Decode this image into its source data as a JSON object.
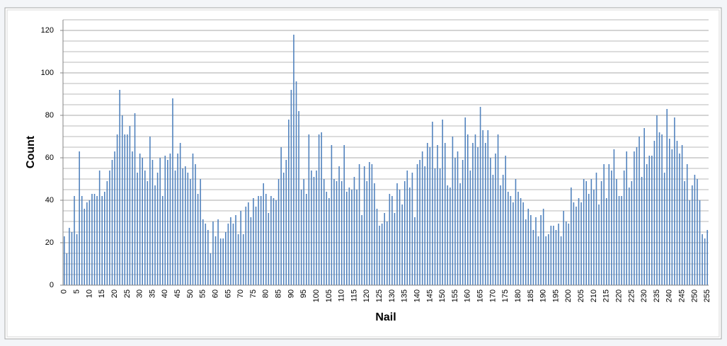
{
  "chart_data": {
    "type": "bar",
    "x_label": "Nail",
    "y_label": "Count",
    "color": "#4f81bd",
    "grid": true,
    "ylim": [
      0,
      125
    ],
    "yticks": [
      0,
      20,
      40,
      60,
      80,
      100,
      120
    ],
    "minor_yticks": [
      5,
      10,
      15,
      25,
      30,
      35,
      45,
      50,
      55,
      65,
      70,
      75,
      85,
      90,
      95,
      105,
      110,
      115,
      125
    ],
    "categories": [
      0,
      null,
      null,
      null,
      null,
      5,
      null,
      null,
      null,
      null,
      10,
      null,
      null,
      null,
      null,
      15,
      null,
      null,
      null,
      null,
      20,
      null,
      null,
      null,
      null,
      25,
      null,
      null,
      null,
      null,
      30,
      null,
      null,
      null,
      null,
      35,
      null,
      null,
      null,
      null,
      40,
      null,
      null,
      null,
      null,
      45,
      null,
      null,
      null,
      null,
      50,
      null,
      null,
      null,
      null,
      55,
      null,
      null,
      null,
      null,
      60,
      null,
      null,
      null,
      null,
      65,
      null,
      null,
      null,
      null,
      70,
      null,
      null,
      null,
      null,
      75,
      null,
      null,
      null,
      null,
      80,
      null,
      null,
      null,
      null,
      85,
      null,
      null,
      null,
      null,
      90,
      null,
      null,
      null,
      null,
      95,
      null,
      null,
      null,
      null,
      100,
      null,
      null,
      null,
      null,
      105,
      null,
      null,
      null,
      null,
      110,
      null,
      null,
      null,
      null,
      115,
      null,
      null,
      null,
      null,
      120,
      null,
      null,
      null,
      null,
      125,
      null,
      null,
      null,
      null,
      130,
      null,
      null,
      null,
      null,
      135,
      null,
      null,
      null,
      null,
      140,
      null,
      null,
      null,
      null,
      145,
      null,
      null,
      null,
      null,
      150,
      null,
      null,
      null,
      null,
      155,
      null,
      null,
      null,
      null,
      160,
      null,
      null,
      null,
      null,
      165,
      null,
      null,
      null,
      null,
      170,
      null,
      null,
      null,
      null,
      175,
      null,
      null,
      null,
      null,
      180,
      null,
      null,
      null,
      null,
      185,
      null,
      null,
      null,
      null,
      190,
      null,
      null,
      null,
      null,
      195,
      null,
      null,
      null,
      null,
      200,
      null,
      null,
      null,
      null,
      205,
      null,
      null,
      null,
      null,
      210,
      null,
      null,
      null,
      null,
      215,
      null,
      null,
      null,
      null,
      220,
      null,
      null,
      null,
      null,
      225,
      null,
      null,
      null,
      null,
      230,
      null,
      null,
      null,
      null,
      235,
      null,
      null,
      null,
      null,
      240,
      null,
      null,
      null,
      null,
      245,
      null,
      null,
      null,
      null,
      250,
      null,
      null,
      null,
      null,
      255
    ],
    "values": [
      23,
      15,
      27,
      25,
      42,
      24,
      63,
      42,
      36,
      39,
      40,
      43,
      43,
      42,
      54,
      42,
      44,
      49,
      54,
      59,
      63,
      71,
      92,
      80,
      71,
      71,
      75,
      63,
      81,
      53,
      62,
      60,
      54,
      49,
      70,
      59,
      47,
      53,
      60,
      42,
      61,
      59,
      62,
      88,
      54,
      62,
      67,
      55,
      56,
      53,
      50,
      62,
      57,
      43,
      50,
      31,
      29,
      26,
      15,
      30,
      23,
      31,
      22,
      22,
      25,
      29,
      32,
      29,
      33,
      24,
      35,
      24,
      37,
      39,
      32,
      41,
      37,
      42,
      42,
      48,
      43,
      34,
      42,
      41,
      40,
      50,
      65,
      53,
      59,
      78,
      92,
      118,
      96,
      82,
      45,
      50,
      43,
      71,
      54,
      51,
      54,
      71,
      72,
      50,
      44,
      41,
      66,
      50,
      49,
      56,
      49,
      66,
      44,
      46,
      45,
      51,
      45,
      57,
      33,
      56,
      49,
      58,
      57,
      48,
      36,
      28,
      29,
      34,
      30,
      43,
      42,
      34,
      48,
      45,
      38,
      49,
      54,
      46,
      53,
      32,
      57,
      59,
      63,
      56,
      67,
      65,
      77,
      55,
      66,
      55,
      78,
      67,
      47,
      46,
      70,
      60,
      63,
      48,
      59,
      79,
      71,
      54,
      67,
      71,
      65,
      84,
      73,
      67,
      73,
      60,
      52,
      62,
      71,
      47,
      52,
      61,
      44,
      42,
      39,
      50,
      44,
      41,
      39,
      31,
      36,
      33,
      26,
      32,
      23,
      33,
      36,
      23,
      24,
      28,
      28,
      26,
      29,
      23,
      35,
      30,
      29,
      46,
      39,
      37,
      41,
      39,
      50,
      49,
      43,
      50,
      45,
      53,
      38,
      49,
      57,
      41,
      57,
      54,
      64,
      50,
      42,
      42,
      54,
      63,
      46,
      49,
      63,
      65,
      70,
      51,
      74,
      57,
      61,
      61,
      68,
      80,
      72,
      71,
      53,
      83,
      69,
      64,
      79,
      68,
      62,
      66,
      49,
      57,
      40,
      47,
      52,
      50,
      40,
      24,
      22,
      26
    ]
  }
}
